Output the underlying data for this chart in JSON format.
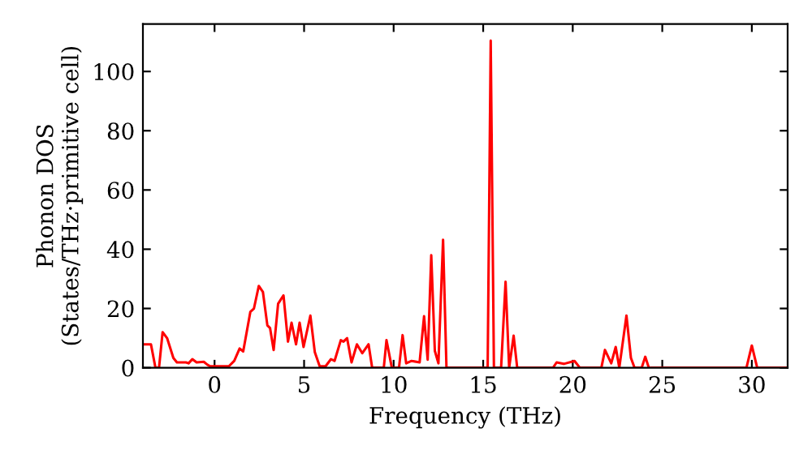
{
  "chart_data": {
    "type": "line",
    "xlabel": "Frequency (THz)",
    "ylabel": "Phonon DOS\n(States/THz·primitive cell)",
    "xlim": [
      -4,
      32
    ],
    "ylim": [
      0,
      116
    ],
    "xticks": [
      0,
      5,
      10,
      15,
      20,
      25,
      30
    ],
    "yticks": [
      0,
      20,
      40,
      60,
      80,
      100
    ],
    "grid": false,
    "legend": false,
    "marker": "none",
    "line_style": "solid",
    "series": [
      {
        "color": "#ff0000",
        "x": [
          -3.9,
          -3.55,
          -3.3,
          -3.1,
          -2.9,
          -2.65,
          -2.3,
          -2.1,
          -1.6,
          -1.45,
          -1.24,
          -1.0,
          -0.6,
          -0.4,
          -0.24,
          0.8,
          1.1,
          1.4,
          1.6,
          2.0,
          2.2,
          2.47,
          2.7,
          2.95,
          3.1,
          3.3,
          3.55,
          3.85,
          4.1,
          4.3,
          4.55,
          4.75,
          4.97,
          5.35,
          5.6,
          5.87,
          6.2,
          6.5,
          6.7,
          7.05,
          7.2,
          7.4,
          7.65,
          7.95,
          8.25,
          8.6,
          8.8,
          9.45,
          9.6,
          9.9,
          10.3,
          10.5,
          10.7,
          11.0,
          11.45,
          11.7,
          11.9,
          12.1,
          12.3,
          12.5,
          12.76,
          12.95,
          15.1,
          15.25,
          15.42,
          15.6,
          16.0,
          16.25,
          16.45,
          16.7,
          16.9,
          18.9,
          19.1,
          19.5,
          20.1,
          20.4,
          21.6,
          21.8,
          22.15,
          22.4,
          22.6,
          23.0,
          23.25,
          23.45,
          23.85,
          24.05,
          24.25,
          29.7,
          30.0,
          30.3,
          32
        ],
        "values": [
          7.9,
          7.9,
          0,
          0,
          12,
          10,
          3.3,
          1.8,
          1.8,
          1.5,
          2.9,
          1.8,
          2,
          1,
          0.5,
          0.5,
          2.3,
          6.5,
          5.5,
          18.9,
          20,
          27.6,
          25.6,
          14.3,
          13.4,
          6,
          21.6,
          24.4,
          8.8,
          15.2,
          7.9,
          15.2,
          7,
          17.6,
          5.2,
          0.5,
          0.5,
          2.9,
          2.3,
          9.3,
          8.8,
          10,
          1.8,
          7.9,
          4.9,
          7.9,
          0,
          0,
          9.3,
          0,
          0,
          11,
          1.5,
          2.3,
          1.8,
          17.4,
          2.7,
          38,
          5.7,
          1.5,
          43.2,
          0,
          0,
          0,
          110.4,
          0,
          0,
          29,
          0,
          10.8,
          0,
          0,
          1.8,
          1.3,
          2.3,
          0,
          0,
          6,
          1.5,
          7,
          0,
          17.6,
          3.3,
          0,
          0,
          3.7,
          0,
          0,
          7.5,
          0,
          0
        ]
      }
    ]
  }
}
